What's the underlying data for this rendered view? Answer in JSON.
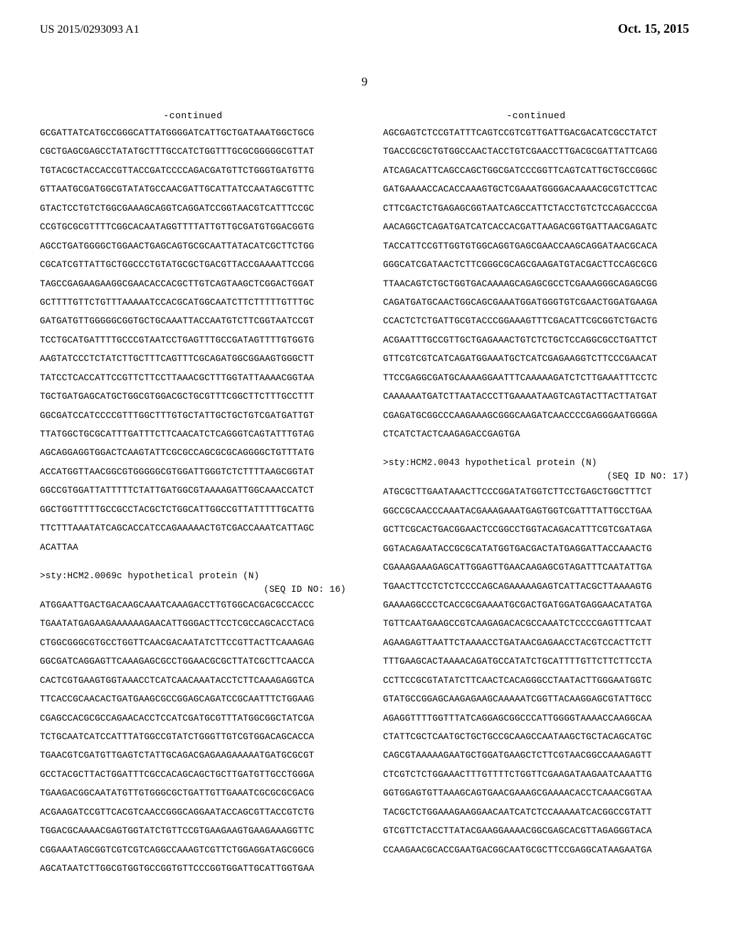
{
  "header": {
    "pub_number": "US 2015/0293093 A1",
    "pub_date": "Oct. 15, 2015",
    "page_number": "9"
  },
  "left": {
    "continued": "-continued",
    "seq1": "GCGATTATCATGCCGGGCATTATGGGGATCATTGCTGATAAATGGCTGCG\nCGCTGAGCGAGCCTATATGCTTTGCCATCTGGTTTGCGCGGGGGCGTTAT\nTGTACGCTACCACCGTTACCGATCCCCAGACGATGTTCTGGGTGATGTTG\nGTTAATGCGATGGCGTATATGCCAACGATTGCATTATCCAATAGCGTTTC\nGTACTCCTGTCTGGCGAAAGCAGGTCAGGATCCGGTAACGTCATTTCCGC\nCCGTGCGCGTTTTCGGCACAATAGGTTTTATTGTTGCGATGTGGACGGTG\nAGCCTGATGGGGCTGGAACTGAGCAGTGCGCAATTATACATCGCTTCTGG\nCGCATCGTTATTGCTGGCCCTGTATGCGCTGACGTTACCGAAAATTCCGG\nTAGCCGAGAAGAAGGCGAACACCACGCTTGTCAGTAAGCTCGGACTGGAT\nGCTTTTGTTCTGTTTAAAAATCCACGCATGGCAATCTTCTTTTTGTTTGC\nGATGATGTTGGGGGCGGTGCTGCAAATTACCAATGTCTTCGGTAATCCGT\nTCCTGCATGATTTTGCCCGTAATCCTGAGTTTGCCGATAGTTTTGTGGTG\nAAGTATCCCTCTATCTTGCTTTCAGTTTCGCAGATGGCGGAAGTGGGCTT\nTATCCTCACCATTCCGTTCTTCCTTAAACGCTTTGGTATTAAAACGGTAA\nTGCTGATGAGCATGCTGGCGTGGACGCTGCGTTTCGGCTTCTTTGCCTTT\nGGCGATCCATCCCCGTTTGGCTTTGTGCTATTGCTGCTGTCGATGATTGT\nTTATGGCTGCGCATTTGATTTCTTCAACATCTCAGGGTCAGTATTTGTAG\nAGCAGGAGGTGGACTCAAGTATTCGCGCCAGCGCGCAGGGGCTGTTTATG\nACCATGGTTAACGGCGTGGGGGCGTGGATTGGGTCTCTTTTAAGCGGTAT\nGGCCGTGGATTATTTTTCTATTGATGGCGTAAAAGATTGGCAAACCATCT\nGGCTGGTTTTTGCCGCCTACGCTCTGGCATTGGCCGTTATTTTTGCATTG\nTTCTTTAAATATCAGCACCATCCAGAAAAACTGTCGACCAAATCATTAGC\nACATTAA",
    "seq2_header": ">sty:HCM2.0069c hypothetical protein (N)",
    "seq2_id": "(SEQ ID NO: 16)",
    "seq2": "ATGGAATTGACTGACAAGCAAATCAAAGACCTTGTGGCACGACGCCACCC\nTGAATATGAGAAGAAAAAAGAACATTGGGACTTCCTCGCCAGCACCTACG\nCTGGCGGGCGTGCCTGGTTCAACGACAATATCTTCCGTTACTTCAAAGAG\nGGCGATCAGGAGTTCAAAGAGCGCCTGGAACGCGCTTATCGCTTCAACCA\nCACTCGTGAAGTGGTAAACCTCATCAACAAATACCTCTTCAAAGAGGTCA\nTTCACCGCAACACTGATGAAGCGCCGGAGCAGATCCGCAATTTCTGGAAG\nCGAGCCACGCGCCAGAACACCTCCATCGATGCGTTTATGGCGGCTATCGA\nTCTGCAATCATCCATTTATGGCCGTATCTGGGTTGTCGTGGACAGCACCA\nTGAACGTCGATGTTGAGTCTATTGCAGACGAGAAGAAAAATGATGCGCGT\nGCCTACGCTTACTGGATTTCGCCACAGCAGCTGCTTGATGTTGCCTGGGA\nTGAAGACGGCAATATGTTGTGGGCGCTGATTGTTGAAATCGCGCGCGACG\nACGAAGATCCGTTCACGTCAACCGGGCAGGAATACCAGCGTTACCGTCTG\nTGGACGCAAAACGAGTGGTATCTGTTCCGTGAAGAAGTGAAGAAAGGTTC\nCGGAAATAGCGGTCGTCGTCAGGCCAAAGTCGTTCTGGAGGATAGCGGCG\nAGCATAATCTTGGCGTGGTGCCGGTGTTCCCGGTGGATTGCATTGGTGAA"
  },
  "right": {
    "continued": "-continued",
    "seq1": "AGCGAGTCTCCGTATTTCAGTCCGTCGTTGATTGACGACATCGCCTATCT\nTGACCGCGCTGTGGCCAACTACCTGTCGAACCTTGACGCGATTATTCAGG\nATCAGACATTCAGCCAGCTGGCGATCCCGGTTCAGTCATTGCTGCCGGGC\nGATGAAAACCACACCAAAGTGCTCGAAATGGGGACAAAACGCGTCTTCAC\nCTTCGACTCTGAGAGCGGTAATCAGCCATTCTACCTGTCTCCAGACCCGA\nAACAGGCTCAGATGATCATCACCACGATTAAGACGGTGATTAACGAGATC\nTACCATTCCGTTGGTGTGGCAGGTGAGCGAACCAAGCAGGATAACGCACA\nGGGCATCGATAACTCTTCGGGCGCAGCGAAGATGTACGACTTCCAGCGCG\nTTAACAGTCTGCTGGTGACAAAAGCAGAGCGCCTCGAAAGGGCAGAGCGG\nCAGATGATGCAACTGGCAGCGAAATGGATGGGTGTCGAACTGGATGAAGA\nCCACTCTCTGATTGCGTACCCGGAAAGTTTCGACATTCGCGGTCTGACTG\nACGAATTTGCCGTTGCTGAGAAACTGTCTCTGCTCCAGGCGCCTGATTCT\nGTTCGTCGTCATCAGATGGAAATGCTCATCGAGAAGGTCTTCCCGAACAT\nTTCCGAGGCGATGCAAAAGGAATTTCAAAAAGATCTCTTGAAATTTCCTC\nCAAAAAATGATCTTAATACCCTTGAAAATAAGTCAGTACTTACTTATGAT\nCGAGATGCGGCCCAAGAAAGCGGGCAAGATCAACCCCGAGGGAATGGGGA\nCTCATCTACTCAAGAGACCGAGTGA",
    "seq2_header": ">sty:HCM2.0043 hypothetical protein (N)",
    "seq2_id": "(SEQ ID NO: 17)",
    "seq2": "ATGCGCTTGAATAAACTTCCCGGATATGGTCTTCCTGAGCTGGCTTTCT\nGGCCGCAACCCAAATACGAAAGAAATGAGTGGTCGATTTATTGCCTGAA\nGCTTCGCACTGACGGAACTCCGGCCTGGTACAGACATTTCGTCGATAGA\nGGTACAGAATACCGCGCATATGGTGACGACTATGAGGATTACCAAACTG\nCGAAAGAAAGAGCATTGGAGTTGAACAAGAGCGTAGATTTCAATATTGA\nTGAACTTCCTCTCTCCCCAGCAGAAAAAGAGTCATTACGCTTAAAAGTG\nGAAAAGGCCCTCACCGCGAAAATGCGACTGATGGATGAGGAACATATGA\nTGTTCAATGAAGCCGTCAAGAGACACGCCAAATCTCCCCGAGTTTCAAT\nAGAAGAGTTAATTCTAAAACCTGATAACGAGAACCTACGTCCACTTCTT\nTTTGAAGCACTAAAACAGATGCCATATCTGCATTTTGTTCTTCTTCCTA\nCCTTCCGCGTATATCTTCAACTCACAGGGCCTAATACTTGGGAATGGTC\nGTATGCCGGAGCAAGAGAAGCAAAAATCGGTTACAAGGAGCGTATTGCC\nAGAGGTTTTGGTTTATCAGGAGCGGCCCATTGGGGTAAAACCAAGGCAA\nCTATTCGCTCAATGCTGCTGCCGCAAGCCAATAAGCTGCTACAGCATGC\nCAGCGTAAAAAGAATGCTGGATGAAGCTCTTCGTAACGGCCAAAGAGTT\nCTCGTCTCTGGAAACTTTGTTTTCTGGTTCGAAGATAAGAATCAAATTG\nGGTGGAGTGTTAAAGCAGTGAACGAAAGCGAAAACACCTCAAACGGTAA\nTACGCTCTGGAAAGAAGGAACAATCATCTCCAAAAATCACGGCCGTATT\nGTCGTTCTACCTTATACGAAGGAAAACGGCGAGCACGTTAGAGGGTACA\nCCAAGAACGCACCGAATGACGGCAATGCGCTTCCGAGGCATAAGAATGA"
  }
}
